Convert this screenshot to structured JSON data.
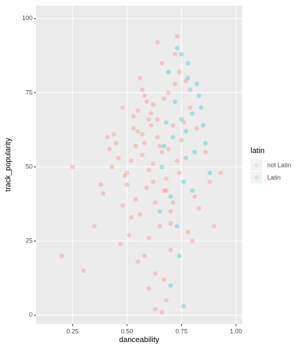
{
  "chart_data": {
    "type": "scatter",
    "x_label": "danceability",
    "y_label": "track_popularity",
    "legend_title": "latin",
    "legend": "right",
    "xlim": [
      0.082,
      1.029
    ],
    "ylim": [
      -3,
      104.4
    ],
    "xticks": [
      0.25,
      0.5,
      0.75,
      {
        "value": 1,
        "label": "1.00"
      }
    ],
    "xtick_labels": [
      "0.25",
      "0.50",
      "0.75",
      "1.00"
    ],
    "yticks": [
      0,
      25,
      50,
      75,
      100
    ],
    "grid": true,
    "series": [
      {
        "name": "not Latin",
        "color": "#F8766D",
        "x": [
          0.62,
          0.55,
          0.71,
          0.48,
          0.66,
          0.58,
          0.74,
          0.69,
          0.52,
          0.45,
          0.81,
          0.6,
          0.67,
          0.73,
          0.56,
          0.5,
          0.64,
          0.78,
          0.43,
          0.59,
          0.7,
          0.63,
          0.54,
          0.76,
          0.68,
          0.47,
          0.61,
          0.57,
          0.72,
          0.65,
          0.39,
          0.83,
          0.53,
          0.66,
          0.6,
          0.75,
          0.49,
          0.58,
          0.7,
          0.62,
          0.35,
          0.86,
          0.44,
          0.64,
          0.55,
          0.79,
          0.67,
          0.51,
          0.71,
          0.6,
          0.3,
          0.88,
          0.57,
          0.63,
          0.46,
          0.74,
          0.68,
          0.53,
          0.65,
          0.59,
          0.41,
          0.8,
          0.62,
          0.56,
          0.72,
          0.5,
          0.69,
          0.66,
          0.61,
          0.54,
          0.25,
          0.9,
          0.38,
          0.77,
          0.64,
          0.58,
          0.7,
          0.52,
          0.67,
          0.6,
          0.2,
          0.93,
          0.48,
          0.73,
          0.57,
          0.63,
          0.55,
          0.68,
          0.42,
          0.82
        ],
        "values": [
          45,
          62,
          38,
          70,
          55,
          20,
          48,
          75,
          33,
          58,
          40,
          66,
          12,
          52,
          80,
          44,
          60,
          28,
          50,
          72,
          35,
          2,
          57,
          65,
          46,
          24,
          68,
          54,
          78,
          30,
          41,
          36,
          63,
          85,
          9,
          59,
          47,
          74,
          22,
          51,
          30,
          55,
          61,
          92,
          18,
          70,
          42,
          27,
          64,
          49,
          15,
          45,
          76,
          38,
          53,
          82,
          5,
          67,
          57,
          43,
          60,
          25,
          71,
          34,
          88,
          48,
          56,
          1,
          64,
          39,
          50,
          30,
          44,
          79,
          66,
          58,
          31,
          52,
          73,
          26,
          20,
          48,
          37,
          94,
          61,
          14,
          69,
          42,
          56,
          63
        ]
      },
      {
        "name": "Latin",
        "color": "#00BFC4",
        "x": [
          0.72,
          0.78,
          0.68,
          0.81,
          0.75,
          0.7,
          0.84,
          0.77,
          0.66,
          0.79,
          0.73,
          0.86,
          0.69,
          0.76,
          0.8,
          0.74,
          0.71,
          0.83,
          0.65,
          0.78,
          0.88,
          0.75,
          0.7,
          0.82,
          0.77,
          0.73,
          0.8,
          0.67,
          0.85,
          0.76
        ],
        "values": [
          72,
          80,
          65,
          55,
          88,
          40,
          70,
          62,
          50,
          76,
          30,
          58,
          82,
          45,
          68,
          20,
          60,
          74,
          35,
          85,
          48,
          66,
          10,
          78,
          53,
          90,
          42,
          57,
          64,
          3
        ]
      }
    ]
  }
}
